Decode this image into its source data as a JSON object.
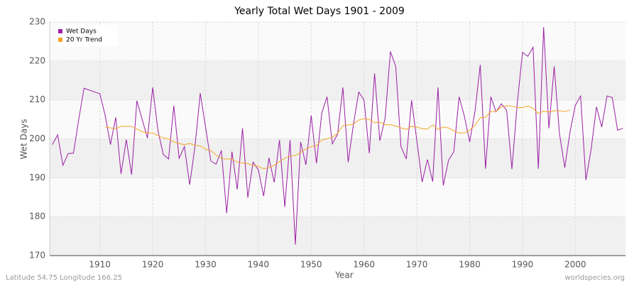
{
  "chart_data": {
    "type": "line",
    "title": "Yearly Total Wet Days 1901 - 2009",
    "x_label": "Year",
    "y_label": "Wet Days",
    "footer_left": "Latitude 54.75 Longitude 166.25",
    "footer_right": "worldspecies.org",
    "x": [
      1901,
      1902,
      1903,
      1904,
      1905,
      1906,
      1907,
      1908,
      1909,
      1910,
      1911,
      1912,
      1913,
      1914,
      1915,
      1916,
      1917,
      1918,
      1919,
      1920,
      1921,
      1922,
      1923,
      1924,
      1925,
      1926,
      1927,
      1928,
      1929,
      1930,
      1931,
      1932,
      1933,
      1934,
      1935,
      1936,
      1937,
      1938,
      1939,
      1940,
      1941,
      1942,
      1943,
      1944,
      1945,
      1946,
      1947,
      1948,
      1949,
      1950,
      1951,
      1952,
      1953,
      1954,
      1955,
      1956,
      1957,
      1958,
      1959,
      1960,
      1961,
      1962,
      1963,
      1964,
      1965,
      1966,
      1967,
      1968,
      1969,
      1970,
      1971,
      1972,
      1973,
      1974,
      1975,
      1976,
      1977,
      1978,
      1979,
      1980,
      1981,
      1982,
      1983,
      1984,
      1985,
      1986,
      1987,
      1988,
      1989,
      1990,
      1991,
      1992,
      1993,
      1994,
      1995,
      1996,
      1997,
      1998,
      1999,
      2000,
      2001,
      2002,
      2003,
      2004,
      2005,
      2006,
      2007,
      2008,
      2009
    ],
    "series": [
      {
        "name": "Wet Days",
        "color": "#9b1fa5",
        "values": [
          198.5,
          201,
          193.2,
          196.2,
          196.3,
          205,
          213,
          212.5,
          212,
          211.6,
          206,
          198.5,
          205.5,
          191,
          199.8,
          190.8,
          209.8,
          205,
          200.2,
          213.2,
          202,
          196,
          194.8,
          208.5,
          195,
          198,
          188.2,
          198,
          211.7,
          203,
          194.3,
          193.5,
          197,
          180.9,
          196.7,
          187,
          202.7,
          184.9,
          194,
          192,
          185.3,
          195.1,
          188.8,
          199.7,
          182.5,
          199.7,
          172.8,
          199.2,
          193.3,
          206,
          193.7,
          206.6,
          210.8,
          198.7,
          201.2,
          213.2,
          194,
          203.7,
          212,
          210,
          196.3,
          216.8,
          199.5,
          205.4,
          222.4,
          218.6,
          198,
          194.8,
          209.9,
          199.5,
          188.9,
          194.7,
          189,
          213.2,
          188,
          194.5,
          196.7,
          210.8,
          205.8,
          199.2,
          207,
          219,
          192.3,
          210.8,
          206.9,
          209,
          207.3,
          192.2,
          209,
          222.2,
          221.2,
          223.5,
          192.3,
          228.7,
          202.7,
          218.6,
          201.3,
          192.6,
          201.8,
          208.6,
          211,
          189.4,
          197.4,
          208.2,
          203,
          211,
          210.6,
          202.2,
          202.7
        ]
      },
      {
        "name": "20 Yr Trend",
        "color": "#f5a623",
        "values": [
          null,
          null,
          null,
          null,
          null,
          null,
          null,
          null,
          null,
          null,
          203,
          202.8,
          202.6,
          203.2,
          203.2,
          203.2,
          202.5,
          201.8,
          201.5,
          201.5,
          200.8,
          200.2,
          200,
          199.2,
          198.8,
          198.5,
          198.8,
          198.3,
          198.2,
          197.3,
          197,
          195.8,
          195,
          194.8,
          194.8,
          194,
          193.8,
          193.6,
          193.2,
          192.9,
          192.3,
          192.6,
          193.2,
          194.2,
          195,
          195.5,
          195.7,
          196.5,
          197.4,
          198,
          198.2,
          199.7,
          200,
          200.4,
          201.4,
          203.4,
          203.5,
          203.8,
          204.8,
          205.2,
          205,
          204.1,
          204.3,
          203.6,
          203.6,
          203.3,
          202.8,
          202.4,
          203.2,
          203,
          202.6,
          202.5,
          203.6,
          202.4,
          203,
          202.8,
          202,
          201.5,
          201.5,
          202.2,
          203.5,
          205.4,
          205.5,
          207,
          207,
          208.2,
          208.5,
          208.4,
          208,
          208,
          208.4,
          207.8,
          206.5,
          207.1,
          206.9,
          207.2,
          207.2,
          207,
          207.4,
          null,
          null,
          null,
          null,
          null,
          null,
          null,
          null,
          null,
          null
        ]
      }
    ],
    "xlim": [
      1900.5,
      2009.5
    ],
    "ylim": [
      170,
      230
    ],
    "xticks": [
      1910,
      1920,
      1930,
      1940,
      1950,
      1960,
      1970,
      1980,
      1990,
      2000
    ],
    "yticks": [
      170,
      180,
      190,
      200,
      210,
      220,
      230
    ],
    "grid": true,
    "legend": "top-left"
  }
}
